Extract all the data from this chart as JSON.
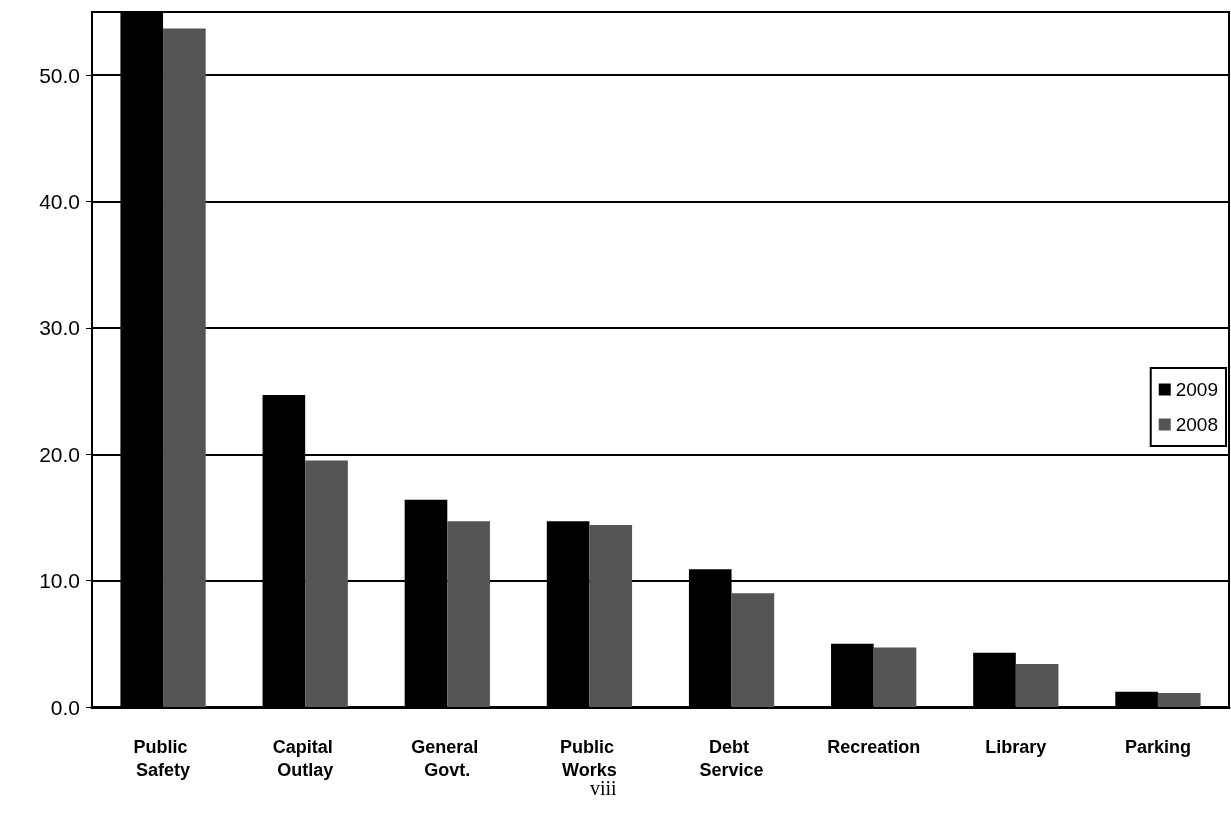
{
  "chart_data": {
    "type": "bar",
    "categories": [
      "Public Safety",
      "Capital Outlay",
      "General Govt.",
      "Public Works",
      "Debt Service",
      "Recreation",
      "Library",
      "Parking"
    ],
    "series": [
      {
        "name": "2009",
        "color": "#000000",
        "values": [
          55,
          24.7,
          16.4,
          14.7,
          10.9,
          5.0,
          4.3,
          1.2
        ]
      },
      {
        "name": "2008",
        "color": "#555555",
        "values": [
          53.7,
          19.5,
          14.7,
          14.4,
          9.0,
          4.7,
          3.4,
          1.1
        ]
      }
    ],
    "ylim": [
      0,
      55
    ],
    "yticks": [
      {
        "value": 0,
        "label": "0.0"
      },
      {
        "value": 10,
        "label": "10.0"
      },
      {
        "value": 20,
        "label": "20.0"
      },
      {
        "value": 30,
        "label": "30.0"
      },
      {
        "value": 40,
        "label": "40.0"
      },
      {
        "value": 50,
        "label": "50.0"
      }
    ],
    "grid": "y",
    "legend": "right",
    "annotations": [
      "viii"
    ]
  }
}
